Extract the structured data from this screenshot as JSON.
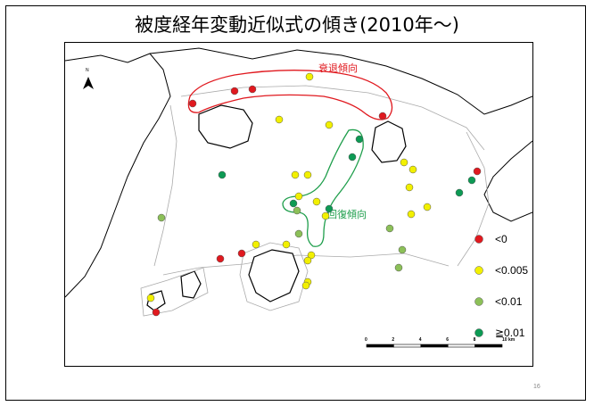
{
  "slide": {
    "title": "被度経年変動近似式の傾き(2010年～)",
    "page_number": "16"
  },
  "map": {
    "north_label": "N",
    "annotations": [
      {
        "text": "衰退傾向",
        "color": "#e0191f"
      },
      {
        "text": "回復傾向",
        "color": "#1e9e4b"
      }
    ],
    "legend": [
      {
        "label": "<0",
        "color": "#e0191f"
      },
      {
        "label": "<0.005",
        "color": "#f2f000"
      },
      {
        "label": "<0.01",
        "color": "#8cc058"
      },
      {
        "label": "≧0.01",
        "color": "#0d9a54"
      }
    ],
    "scale_labels": [
      "0",
      "2",
      "4",
      "6",
      "8",
      "10 km"
    ]
  },
  "sites": [
    {
      "cls": 0
    },
    {
      "cls": 0
    },
    {
      "cls": 0
    },
    {
      "cls": 0
    },
    {
      "cls": 0
    },
    {
      "cls": 0
    },
    {
      "cls": 0
    },
    {
      "cls": 0
    },
    {
      "cls": 1
    },
    {
      "cls": 1
    },
    {
      "cls": 1
    },
    {
      "cls": 1
    },
    {
      "cls": 1
    },
    {
      "cls": 1
    },
    {
      "cls": 1
    },
    {
      "cls": 1
    },
    {
      "cls": 1
    },
    {
      "cls": 1
    },
    {
      "cls": 1
    },
    {
      "cls": 1
    },
    {
      "cls": 1
    },
    {
      "cls": 1
    },
    {
      "cls": 1
    },
    {
      "cls": 1
    },
    {
      "cls": 1
    },
    {
      "cls": 1
    },
    {
      "cls": 1
    },
    {
      "cls": 1
    },
    {
      "cls": 2
    },
    {
      "cls": 2
    },
    {
      "cls": 2
    },
    {
      "cls": 2
    },
    {
      "cls": 2
    },
    {
      "cls": 2
    },
    {
      "cls": 3
    },
    {
      "cls": 3
    },
    {
      "cls": 3
    },
    {
      "cls": 3
    },
    {
      "cls": 3
    },
    {
      "cls": 3
    },
    {
      "cls": 3
    }
  ]
}
